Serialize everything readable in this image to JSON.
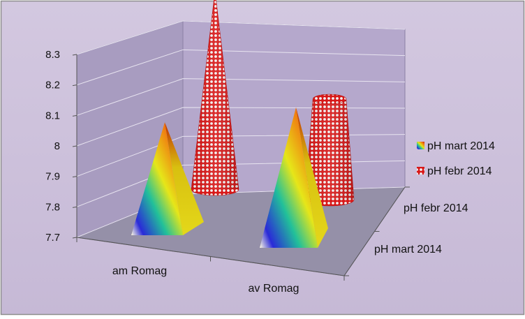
{
  "chart_data": {
    "type": "bar",
    "shape": "3d-cone-pyramid",
    "categories": [
      "am Romag",
      "av Romag"
    ],
    "depth_categories": [
      "pH mart 2014",
      "pH febr 2014"
    ],
    "y_ticks": [
      "7.7",
      "7.8",
      "7.9",
      "8",
      "8.1",
      "8.2",
      "8.3"
    ],
    "ylim": [
      7.7,
      8.3
    ],
    "series": [
      {
        "name": "pH mart 2014",
        "values": [
          8.08,
          8.17
        ]
      },
      {
        "name": "pH febr 2014",
        "values": [
          8.33,
          8.03
        ]
      }
    ],
    "legend_position": "right",
    "grid": true,
    "colors": {
      "frame_background": "#ccc0da",
      "wall": "#b5a8cc",
      "floor": "#9590a8",
      "gridline": "#e8e4f0",
      "pyramid_gradient": [
        "#2a2ad8",
        "#21c0a0",
        "#e6e619",
        "#f07a10",
        "#cc1a00"
      ],
      "cone_pattern": [
        "#d81818",
        "#f2f2f2"
      ]
    }
  }
}
